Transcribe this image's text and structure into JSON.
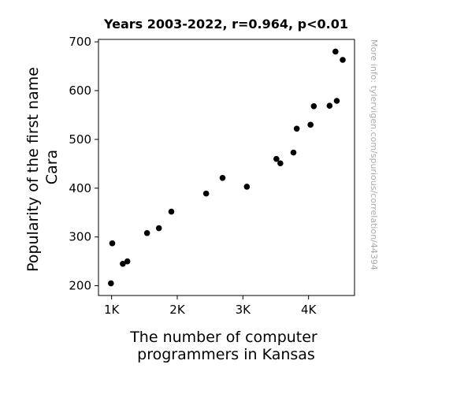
{
  "chart_data": {
    "type": "scatter",
    "title": "Years 2003-2022, r=0.964, p<0.01",
    "xlabel_lines": [
      "The number of computer",
      "programmers in Kansas"
    ],
    "ylabel_lines": [
      "Popularity of the first name",
      "Cara"
    ],
    "xlim": [
      800,
      4700
    ],
    "ylim": [
      180,
      705
    ],
    "x_ticks": [
      {
        "value": 1000,
        "label": "1K"
      },
      {
        "value": 2000,
        "label": "2K"
      },
      {
        "value": 3000,
        "label": "3K"
      },
      {
        "value": 4000,
        "label": "4K"
      }
    ],
    "y_ticks": [
      {
        "value": 200,
        "label": "200"
      },
      {
        "value": 300,
        "label": "300"
      },
      {
        "value": 400,
        "label": "400"
      },
      {
        "value": 500,
        "label": "500"
      },
      {
        "value": 600,
        "label": "600"
      },
      {
        "value": 700,
        "label": "700"
      }
    ],
    "grid": false,
    "marker_color": "#000000",
    "points": [
      {
        "x": 990,
        "y": 205
      },
      {
        "x": 1010,
        "y": 287
      },
      {
        "x": 1170,
        "y": 245
      },
      {
        "x": 1240,
        "y": 250
      },
      {
        "x": 1540,
        "y": 308
      },
      {
        "x": 1720,
        "y": 318
      },
      {
        "x": 1910,
        "y": 352
      },
      {
        "x": 2440,
        "y": 389
      },
      {
        "x": 2690,
        "y": 421
      },
      {
        "x": 3060,
        "y": 403
      },
      {
        "x": 3510,
        "y": 460
      },
      {
        "x": 3570,
        "y": 451
      },
      {
        "x": 3770,
        "y": 473
      },
      {
        "x": 3820,
        "y": 522
      },
      {
        "x": 4030,
        "y": 530
      },
      {
        "x": 4080,
        "y": 568
      },
      {
        "x": 4320,
        "y": 569
      },
      {
        "x": 4410,
        "y": 680
      },
      {
        "x": 4430,
        "y": 579
      },
      {
        "x": 4520,
        "y": 663
      }
    ]
  },
  "side_note": "More info: tylervigen.com/spurious/correlation/44394"
}
